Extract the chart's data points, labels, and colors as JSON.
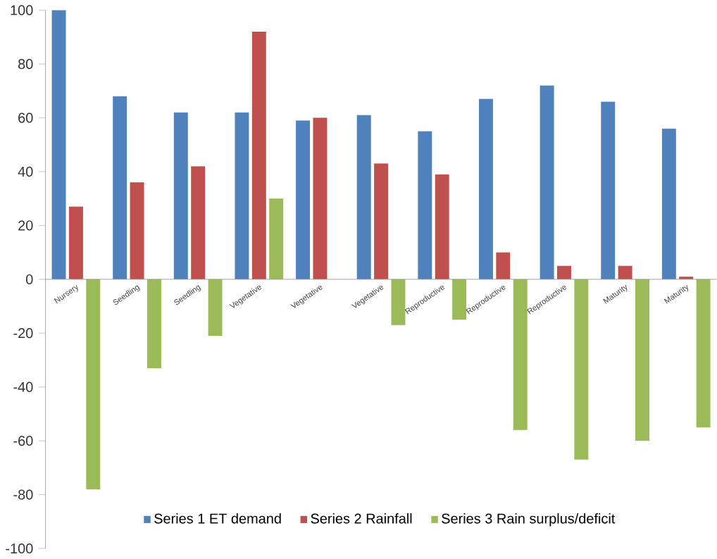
{
  "chart_data": {
    "type": "bar",
    "categories": [
      "Nursery",
      "Seedling",
      "Seedling",
      "Vegetative",
      "Vegetative",
      "Vegetative",
      "Reproductive",
      "Reproductive",
      "Reproductive",
      "Maturity",
      "Maturity"
    ],
    "series": [
      {
        "name": "Series 1 ET demand",
        "color": "#4f81bd",
        "values": [
          100,
          68,
          62,
          62,
          59,
          61,
          55,
          67,
          72,
          66,
          56
        ]
      },
      {
        "name": "Series 2 Rainfall",
        "color": "#c0504d",
        "values": [
          27,
          36,
          42,
          92,
          60,
          43,
          39,
          10,
          5,
          5,
          1
        ]
      },
      {
        "name": "Series 3 Rain surplus/deficit",
        "color": "#9bbb59",
        "values": [
          -78,
          -33,
          -21,
          30,
          0,
          -17,
          -15,
          -56,
          -67,
          -60,
          -55
        ]
      }
    ],
    "ylim": [
      -100,
      100
    ],
    "yticks": [
      -100,
      -80,
      -60,
      -40,
      -20,
      0,
      20,
      40,
      60,
      80,
      100
    ],
    "grid": false,
    "legend": "bottom"
  }
}
